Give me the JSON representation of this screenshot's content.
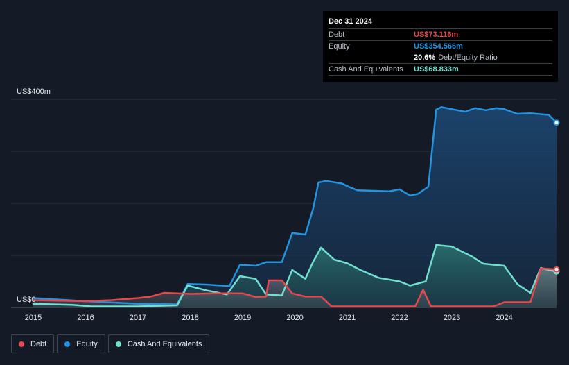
{
  "tooltip": {
    "date": "Dec 31 2024",
    "debt_label": "Debt",
    "debt_value": "US$73.116m",
    "equity_label": "Equity",
    "equity_value": "US$354.566m",
    "ratio_value": "20.6%",
    "ratio_label": "Debt/Equity Ratio",
    "cash_label": "Cash And Equivalents",
    "cash_value": "US$68.833m"
  },
  "legend": [
    {
      "label": "Debt",
      "color": "#e8474c"
    },
    {
      "label": "Equity",
      "color": "#2394df"
    },
    {
      "label": "Cash And Equivalents",
      "color": "#70e0d0"
    }
  ],
  "chart_data": {
    "type": "area",
    "title": "",
    "y_top_label": "US$400m",
    "y_bottom_label": "US$0",
    "ylim": [
      0,
      400
    ],
    "xlim": [
      2015,
      2025.0
    ],
    "grid": true,
    "x_ticks": [
      "2015",
      "2016",
      "2017",
      "2018",
      "2019",
      "2020",
      "2021",
      "2022",
      "2023",
      "2024"
    ],
    "series": [
      {
        "name": "Equity",
        "color": "#2394df",
        "points": [
          [
            2015.0,
            18
          ],
          [
            2016.0,
            12
          ],
          [
            2017.0,
            7
          ],
          [
            2017.75,
            6
          ],
          [
            2017.95,
            45
          ],
          [
            2018.3,
            44
          ],
          [
            2018.75,
            41
          ],
          [
            2018.95,
            82
          ],
          [
            2019.25,
            80
          ],
          [
            2019.45,
            87
          ],
          [
            2019.75,
            87
          ],
          [
            2019.95,
            143
          ],
          [
            2020.2,
            140
          ],
          [
            2020.35,
            190
          ],
          [
            2020.45,
            240
          ],
          [
            2020.6,
            243
          ],
          [
            2020.9,
            238
          ],
          [
            2021.0,
            233
          ],
          [
            2021.2,
            225
          ],
          [
            2021.5,
            224
          ],
          [
            2021.8,
            223
          ],
          [
            2022.0,
            227
          ],
          [
            2022.2,
            215
          ],
          [
            2022.35,
            218
          ],
          [
            2022.55,
            232
          ],
          [
            2022.7,
            380
          ],
          [
            2022.8,
            385
          ],
          [
            2023.0,
            381
          ],
          [
            2023.25,
            376
          ],
          [
            2023.45,
            383
          ],
          [
            2023.65,
            379
          ],
          [
            2023.85,
            383
          ],
          [
            2024.0,
            381
          ],
          [
            2024.25,
            372
          ],
          [
            2024.5,
            373
          ],
          [
            2024.85,
            370
          ],
          [
            2025.0,
            355
          ]
        ]
      },
      {
        "name": "Cash And Equivalents",
        "color": "#70e0d0",
        "points": [
          [
            2015.0,
            7
          ],
          [
            2015.75,
            5
          ],
          [
            2016.1,
            2
          ],
          [
            2017.0,
            2
          ],
          [
            2017.75,
            4
          ],
          [
            2017.95,
            42
          ],
          [
            2018.3,
            33
          ],
          [
            2018.7,
            25
          ],
          [
            2018.95,
            60
          ],
          [
            2019.25,
            55
          ],
          [
            2019.45,
            25
          ],
          [
            2019.75,
            23
          ],
          [
            2019.95,
            72
          ],
          [
            2020.2,
            55
          ],
          [
            2020.35,
            88
          ],
          [
            2020.5,
            115
          ],
          [
            2020.75,
            92
          ],
          [
            2021.0,
            85
          ],
          [
            2021.25,
            72
          ],
          [
            2021.6,
            57
          ],
          [
            2022.0,
            50
          ],
          [
            2022.2,
            42
          ],
          [
            2022.5,
            50
          ],
          [
            2022.7,
            120
          ],
          [
            2023.0,
            117
          ],
          [
            2023.4,
            97
          ],
          [
            2023.6,
            84
          ],
          [
            2023.8,
            82
          ],
          [
            2024.0,
            80
          ],
          [
            2024.25,
            45
          ],
          [
            2024.5,
            28
          ],
          [
            2024.7,
            76
          ],
          [
            2024.85,
            72
          ],
          [
            2025.0,
            69
          ]
        ]
      },
      {
        "name": "Debt",
        "color": "#e8474c",
        "points": [
          [
            2015.0,
            14
          ],
          [
            2015.5,
            13
          ],
          [
            2016.0,
            12
          ],
          [
            2016.5,
            14
          ],
          [
            2017.0,
            18
          ],
          [
            2017.25,
            21
          ],
          [
            2017.5,
            28
          ],
          [
            2017.75,
            27
          ],
          [
            2018.0,
            26
          ],
          [
            2018.5,
            27
          ],
          [
            2019.0,
            27
          ],
          [
            2019.25,
            20
          ],
          [
            2019.45,
            21
          ],
          [
            2019.5,
            52
          ],
          [
            2019.75,
            52
          ],
          [
            2019.95,
            27
          ],
          [
            2020.2,
            21
          ],
          [
            2020.5,
            21
          ],
          [
            2020.7,
            2
          ],
          [
            2022.3,
            2
          ],
          [
            2022.45,
            34
          ],
          [
            2022.6,
            2
          ],
          [
            2023.8,
            2
          ],
          [
            2024.0,
            10
          ],
          [
            2024.5,
            10
          ],
          [
            2024.7,
            75
          ],
          [
            2024.85,
            74
          ],
          [
            2025.0,
            73
          ]
        ]
      }
    ]
  }
}
